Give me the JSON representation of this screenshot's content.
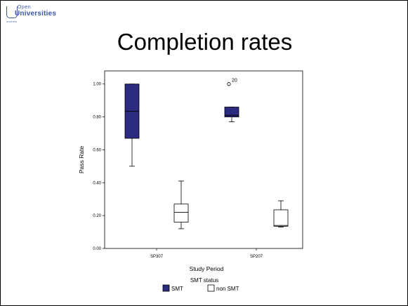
{
  "slide": {
    "title": "Completion rates",
    "logo_top": "Open",
    "logo_main": "Universities",
    "logo_sub": "australia"
  },
  "chart_data": {
    "type": "boxplot",
    "xlabel": "Study Period",
    "ylabel": "Pass Rate",
    "ylim": [
      0,
      1.08
    ],
    "yticks": [
      "0.00",
      "0.20",
      "0.40",
      "0.60",
      "0.80",
      "1.00"
    ],
    "categories": [
      "SP307",
      "SP207"
    ],
    "legend_title": "SMT status",
    "legend_position": "bottom",
    "series": [
      {
        "name": "SMT",
        "color": "#2b2b80",
        "boxes": [
          {
            "min": 0.5,
            "q1": 0.67,
            "median": 0.835,
            "q3": 1.0,
            "max": 1.0,
            "outliers": []
          },
          {
            "min": 0.77,
            "q1": 0.8,
            "median": 0.81,
            "q3": 0.86,
            "max": 0.86,
            "outliers": [
              {
                "value": 1.0,
                "label": "20"
              }
            ]
          }
        ]
      },
      {
        "name": "non SMT",
        "color": "#ffffff",
        "boxes": [
          {
            "min": 0.12,
            "q1": 0.16,
            "median": 0.22,
            "q3": 0.27,
            "max": 0.41,
            "outliers": []
          },
          {
            "min": 0.13,
            "q1": 0.135,
            "median": 0.14,
            "q3": 0.235,
            "max": 0.29,
            "outliers": []
          }
        ]
      }
    ]
  }
}
